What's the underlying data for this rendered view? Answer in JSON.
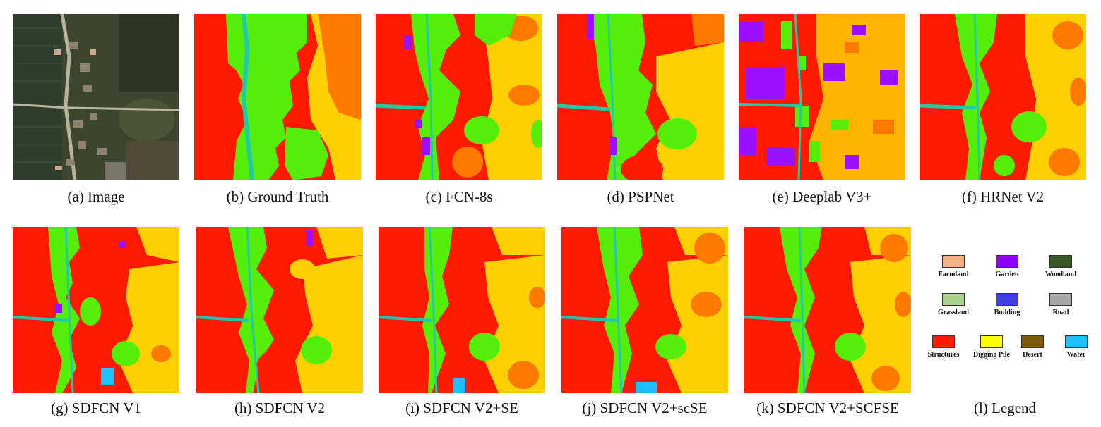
{
  "panels": [
    {
      "caption": "(a) Image"
    },
    {
      "caption": "(b) Ground Truth"
    },
    {
      "caption": "(c) FCN-8s"
    },
    {
      "caption": "(d) PSPNet"
    },
    {
      "caption": "(e) Deeplab V3+"
    },
    {
      "caption": "(f) HRNet V2"
    },
    {
      "caption": "(g) SDFCN V1"
    },
    {
      "caption": "(h) SDFCN V2"
    },
    {
      "caption": "(i) SDFCN V2+SE"
    },
    {
      "caption": "(j) SDFCN V2+scSE"
    },
    {
      "caption": "(k) SDFCN V2+SCFSE"
    }
  ],
  "legend": {
    "caption": "(l) Legend",
    "items": [
      {
        "label": "Farmland",
        "color": "#f4b183"
      },
      {
        "label": "Garden",
        "color": "#8b00ff"
      },
      {
        "label": "Woodland",
        "color": "#385723"
      },
      {
        "label": "Grassland",
        "color": "#a9d18e"
      },
      {
        "label": "Building",
        "color": "#3f3fe0"
      },
      {
        "label": "Road",
        "color": "#a6a6a6"
      },
      {
        "label": "Structures",
        "color": "#ff1a00"
      },
      {
        "label": "Digging Pile",
        "color": "#ffff00"
      },
      {
        "label": "Desert",
        "color": "#7f5a0b"
      },
      {
        "label": "Water",
        "color": "#1ebfff"
      }
    ]
  },
  "colors": {
    "structures": "#ff1a00",
    "grass": "#55ee0a",
    "digging": "#ffd000",
    "orange": "#ff7800",
    "water": "#22c9a8",
    "purple": "#9a10ff"
  }
}
